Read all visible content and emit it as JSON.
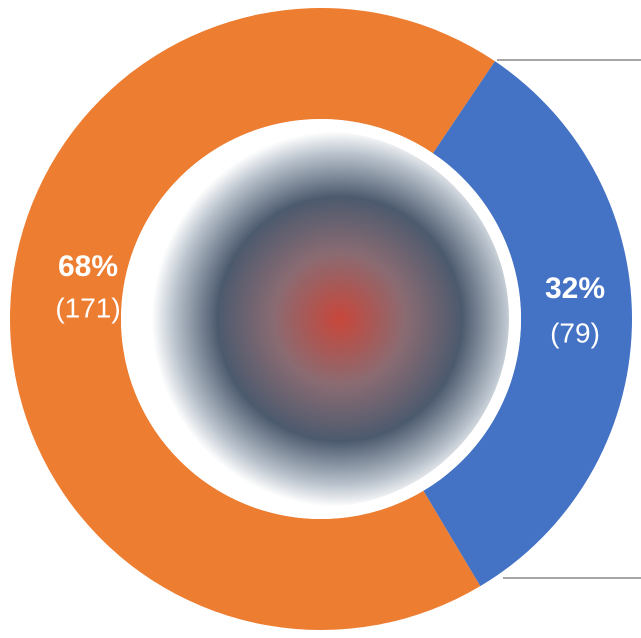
{
  "chart_data": {
    "type": "donut",
    "values": [
      32,
      68
    ],
    "value_labels": [
      "32%",
      "68%"
    ],
    "counts": [
      79,
      171
    ],
    "count_labels": [
      "(79)",
      "(171)"
    ],
    "colors": [
      "#4472c4",
      "#ed7d31"
    ]
  }
}
